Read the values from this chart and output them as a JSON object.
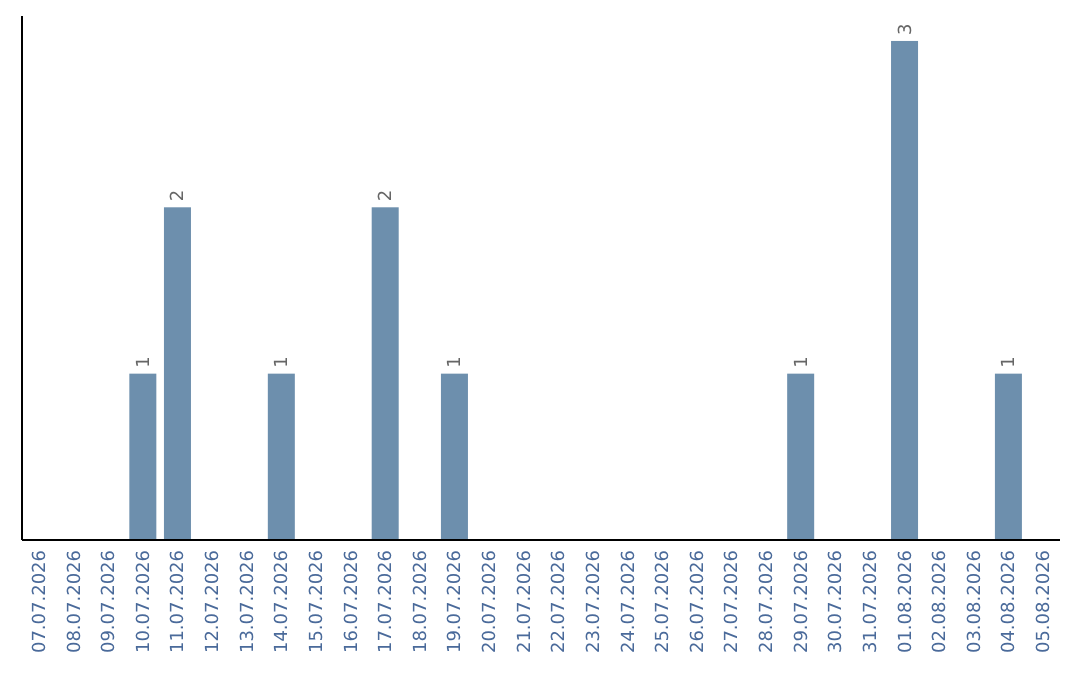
{
  "chart_data": {
    "type": "bar",
    "categories": [
      "07.07.2026",
      "08.07.2026",
      "09.07.2026",
      "10.07.2026",
      "11.07.2026",
      "12.07.2026",
      "13.07.2026",
      "14.07.2026",
      "15.07.2026",
      "16.07.2026",
      "17.07.2026",
      "18.07.2026",
      "19.07.2026",
      "20.07.2026",
      "21.07.2026",
      "22.07.2026",
      "23.07.2026",
      "24.07.2026",
      "25.07.2026",
      "26.07.2026",
      "27.07.2026",
      "28.07.2026",
      "29.07.2026",
      "30.07.2026",
      "31.07.2026",
      "01.08.2026",
      "02.08.2026",
      "03.08.2026",
      "04.08.2026",
      "05.08.2026"
    ],
    "values": [
      0,
      0,
      0,
      1,
      2,
      0,
      0,
      1,
      0,
      0,
      2,
      0,
      1,
      0,
      0,
      0,
      0,
      0,
      0,
      0,
      0,
      0,
      1,
      0,
      0,
      3,
      0,
      0,
      1,
      0
    ],
    "value_labels": [
      null,
      null,
      null,
      "1",
      "2",
      null,
      null,
      "1",
      null,
      null,
      "2",
      null,
      "1",
      null,
      null,
      null,
      null,
      null,
      null,
      null,
      null,
      null,
      "1",
      null,
      null,
      "3",
      null,
      null,
      "1",
      null
    ],
    "color": "#6d8fad",
    "ylim": [
      0,
      3.15
    ],
    "tick_labels": "x"
  }
}
